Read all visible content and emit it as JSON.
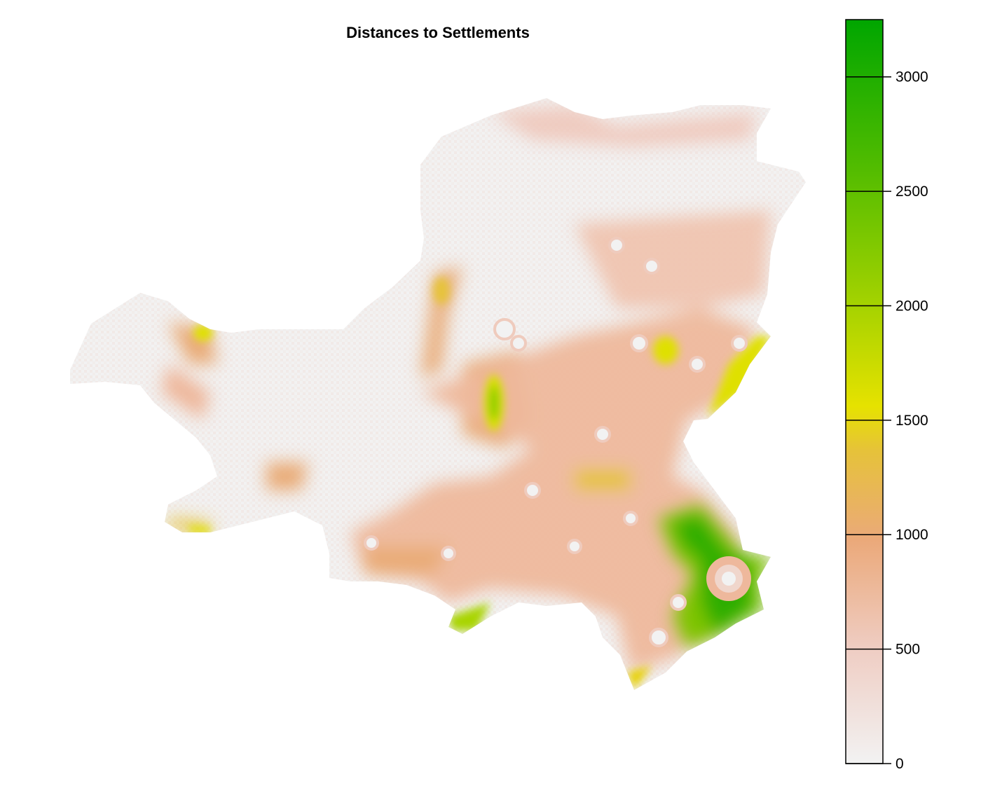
{
  "title": "Distances to Settlements",
  "legend": {
    "min": 0,
    "max": 3250,
    "ticks": [
      0,
      500,
      1000,
      1500,
      2000,
      2500,
      3000
    ],
    "tick_labels": [
      "0",
      "500",
      "1000",
      "1500",
      "2000",
      "2500",
      "3000"
    ],
    "colors": [
      "#f2f2f2",
      "#eec5b8",
      "#eba97a",
      "#e6c33a",
      "#e6e600",
      "#9ed000",
      "#4fbb00",
      "#00a600"
    ]
  },
  "chart_data": {
    "type": "heatmap",
    "title": "Distances to Settlements",
    "value_range": [
      0,
      3250
    ],
    "legend_ticks": [
      0,
      500,
      1000,
      1500,
      2000,
      2500,
      3000
    ],
    "legend_placement": "right",
    "color_scale": "terrain (grey → salmon → orange → yellow → green)"
  }
}
